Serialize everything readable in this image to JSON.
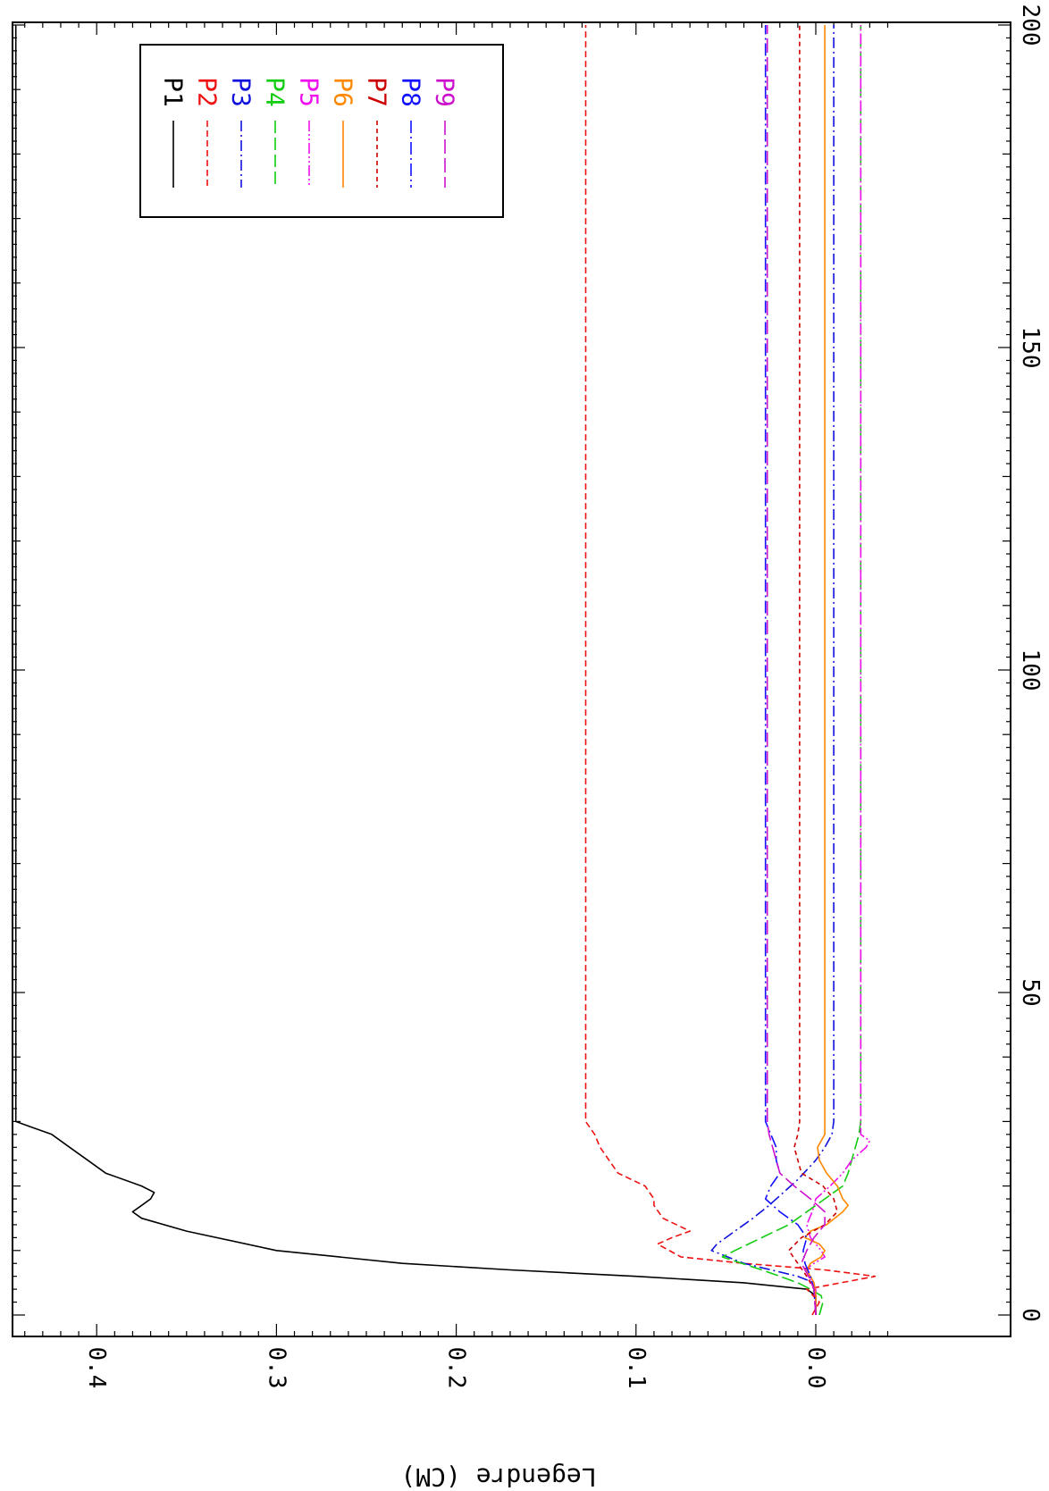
{
  "chart_data": {
    "type": "line",
    "orientation": "rotated-90-clockwise",
    "title": "",
    "xlabel": "",
    "ylabel": "Legendre (CM)",
    "xlim": [
      0,
      200
    ],
    "ylim": [
      -0.045,
      0.455
    ],
    "x_ticks": [
      0,
      50,
      100,
      150,
      200
    ],
    "y_ticks": [
      0.0,
      0.1,
      0.2,
      0.3,
      0.4
    ],
    "x_tick_labels": [
      "0",
      "50",
      "100",
      "150",
      "200"
    ],
    "y_tick_labels": [
      "0.0",
      "0.1",
      "0.2",
      "0.3",
      "0.4"
    ],
    "grid": false,
    "legend_position": "top-left",
    "series": [
      {
        "name": "P1",
        "color": "#000000",
        "dash": "solid",
        "x": [
          0,
          2,
          3,
          4,
          5,
          6,
          7,
          8,
          10,
          13,
          15,
          16,
          17,
          18,
          19,
          20,
          22,
          24,
          26,
          28,
          29,
          30,
          200
        ],
        "y": [
          0,
          0,
          0,
          0.005,
          0.04,
          0.1,
          0.17,
          0.23,
          0.3,
          0.35,
          0.375,
          0.38,
          0.375,
          0.37,
          0.368,
          0.375,
          0.395,
          0.405,
          0.415,
          0.425,
          0.435,
          0.445,
          0.445
        ]
      },
      {
        "name": "P2",
        "color": "#ee1111",
        "dash": "7,4",
        "x": [
          0,
          2,
          4,
          6,
          7,
          8,
          9,
          11,
          12,
          13,
          15,
          17,
          18,
          20,
          22,
          24,
          26,
          28,
          30,
          200
        ],
        "y": [
          0.002,
          -0.002,
          0.005,
          -0.033,
          -0.005,
          0.04,
          0.075,
          0.088,
          0.08,
          0.07,
          0.085,
          0.09,
          0.09,
          0.095,
          0.11,
          0.115,
          0.12,
          0.123,
          0.128,
          0.128
        ]
      },
      {
        "name": "P3",
        "color": "#1111dd",
        "dash": "12,4,2,4",
        "x": [
          0,
          3,
          5,
          6,
          8,
          10,
          11,
          13,
          15,
          17,
          19,
          21,
          24,
          26,
          28,
          30,
          200
        ],
        "y": [
          0,
          0,
          0.001,
          0.01,
          0.04,
          0.058,
          0.055,
          0.045,
          0.035,
          0.026,
          0.018,
          0.01,
          0,
          -0.005,
          -0.009,
          -0.01,
          -0.01
        ]
      },
      {
        "name": "P4",
        "color": "#11cc11",
        "dash": "14,5",
        "x": [
          0,
          2,
          3,
          4,
          5,
          6,
          7,
          9,
          10,
          12,
          14,
          16,
          18,
          20,
          22,
          24,
          26,
          28,
          30,
          200
        ],
        "y": [
          -0.002,
          -0.004,
          -0.003,
          0.003,
          0.01,
          0.02,
          0.03,
          0.052,
          0.045,
          0.03,
          0.015,
          0.005,
          -0.005,
          -0.015,
          -0.018,
          -0.02,
          -0.022,
          -0.024,
          -0.025,
          -0.025
        ]
      },
      {
        "name": "P5",
        "color": "#ee11ee",
        "dash": "12,3,2,3,2,3",
        "x": [
          0,
          4,
          6,
          7,
          8,
          9,
          10,
          12,
          14,
          16,
          18,
          20,
          22,
          24,
          26,
          27,
          28,
          30,
          200
        ],
        "y": [
          0,
          0,
          0.004,
          0.006,
          0.001,
          -0.005,
          -0.003,
          0.003,
          0.005,
          0.002,
          0,
          -0.008,
          -0.015,
          -0.02,
          -0.028,
          -0.03,
          -0.025,
          -0.025,
          -0.025
        ]
      },
      {
        "name": "P6",
        "color": "#ff8800",
        "dash": "solid",
        "x": [
          0,
          3,
          5,
          6,
          7,
          8,
          9,
          10,
          11,
          12,
          13,
          14,
          16,
          17,
          18,
          20,
          22,
          24,
          26,
          28,
          30,
          200
        ],
        "y": [
          0,
          0,
          0.001,
          0.003,
          0.005,
          0.003,
          -0.003,
          -0.005,
          -0.002,
          0.006,
          0.003,
          -0.006,
          -0.015,
          -0.018,
          -0.015,
          -0.012,
          -0.006,
          -0.002,
          -0.001,
          -0.005,
          -0.005,
          -0.005
        ]
      },
      {
        "name": "P7",
        "color": "#cc0000",
        "dash": "5,4",
        "x": [
          0,
          4,
          6,
          8,
          10,
          12,
          14,
          16,
          18,
          20,
          22,
          24,
          26,
          28,
          30,
          200
        ],
        "y": [
          0,
          0.001,
          0.005,
          0.01,
          0.015,
          0.008,
          -0.005,
          -0.012,
          -0.01,
          -0.004,
          0.008,
          0.01,
          0.012,
          0.01,
          0.009,
          0.009
        ]
      },
      {
        "name": "P8",
        "color": "#1111ff",
        "dash": "14,4,2,4",
        "x": [
          0,
          4,
          6,
          8,
          10,
          12,
          14,
          16,
          18,
          20,
          22,
          24,
          26,
          28,
          30,
          200
        ],
        "y": [
          0,
          0.001,
          0.003,
          0.006,
          0.007,
          0.005,
          0.01,
          0.02,
          0.028,
          0.025,
          0.02,
          0.022,
          0.022,
          0.025,
          0.028,
          0.028
        ]
      },
      {
        "name": "P9",
        "color": "#cc11cc",
        "dash": "16,5",
        "x": [
          0,
          4,
          6,
          8,
          10,
          12,
          14,
          16,
          18,
          20,
          22,
          24,
          26,
          28,
          30,
          200
        ],
        "y": [
          0,
          0.001,
          0.004,
          0.008,
          0.005,
          0.001,
          -0.005,
          -0.005,
          0.003,
          0.012,
          0.02,
          0.022,
          0.024,
          0.026,
          0.027,
          0.027
        ]
      }
    ]
  }
}
